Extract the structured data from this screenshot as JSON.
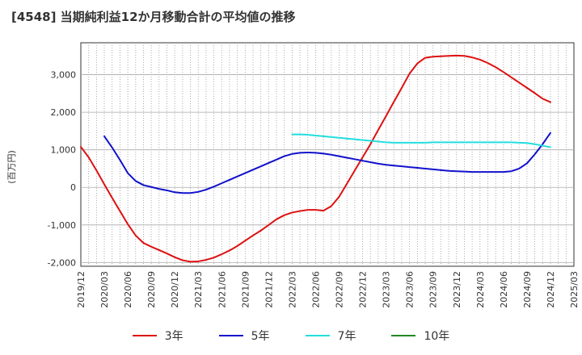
{
  "title": "[4548]  当期純利益12か月移動合計の平均値の推移",
  "chart_data": {
    "type": "line",
    "ylabel": "(百万円)",
    "ylim": [
      -2100,
      3850
    ],
    "yticks": [
      3000,
      2000,
      1000,
      0,
      -1000,
      -2000
    ],
    "ytick_labels": [
      "3,000",
      "2,000",
      "1,000",
      "0",
      "-1,000",
      "-2,000"
    ],
    "xlim": [
      "2019-12",
      "2025-03"
    ],
    "xticks": [
      "2019/12",
      "2020/03",
      "2020/06",
      "2020/09",
      "2020/12",
      "2021/03",
      "2021/06",
      "2021/09",
      "2021/12",
      "2022/03",
      "2022/06",
      "2022/09",
      "2022/12",
      "2023/03",
      "2023/06",
      "2023/09",
      "2023/12",
      "2024/03",
      "2024/06",
      "2024/09",
      "2024/12",
      "2025/03"
    ],
    "grid": true,
    "legend_position": "bottom",
    "series": [
      {
        "name": "3年",
        "color": "#dd1111",
        "x": [
          "2019-12",
          "2020-01",
          "2020-02",
          "2020-03",
          "2020-04",
          "2020-05",
          "2020-06",
          "2020-07",
          "2020-08",
          "2020-09",
          "2020-10",
          "2020-11",
          "2020-12",
          "2021-01",
          "2021-02",
          "2021-03",
          "2021-04",
          "2021-05",
          "2021-06",
          "2021-07",
          "2021-08",
          "2021-09",
          "2021-10",
          "2021-11",
          "2021-12",
          "2022-01",
          "2022-02",
          "2022-03",
          "2022-04",
          "2022-05",
          "2022-06",
          "2022-07",
          "2022-08",
          "2022-09",
          "2022-10",
          "2022-11",
          "2022-12",
          "2023-01",
          "2023-02",
          "2023-03",
          "2023-04",
          "2023-05",
          "2023-06",
          "2023-07",
          "2023-08",
          "2023-09",
          "2023-10",
          "2023-11",
          "2023-12",
          "2024-01",
          "2024-02",
          "2024-03",
          "2024-04",
          "2024-05",
          "2024-06",
          "2024-07",
          "2024-08",
          "2024-09",
          "2024-10",
          "2024-11",
          "2024-12"
        ],
        "values": [
          1080,
          800,
          450,
          80,
          -280,
          -630,
          -980,
          -1280,
          -1480,
          -1580,
          -1670,
          -1760,
          -1860,
          -1940,
          -1980,
          -1970,
          -1930,
          -1870,
          -1780,
          -1680,
          -1560,
          -1420,
          -1280,
          -1150,
          -1000,
          -850,
          -740,
          -670,
          -630,
          -600,
          -600,
          -620,
          -500,
          -250,
          100,
          450,
          800,
          1150,
          1530,
          1900,
          2280,
          2650,
          3030,
          3300,
          3450,
          3480,
          3490,
          3500,
          3510,
          3500,
          3460,
          3400,
          3310,
          3200,
          3070,
          2930,
          2790,
          2650,
          2510,
          2360,
          2270
        ]
      },
      {
        "name": "5年",
        "color": "#1111cc",
        "x": [
          "2020-03",
          "2020-04",
          "2020-05",
          "2020-06",
          "2020-07",
          "2020-08",
          "2020-09",
          "2020-10",
          "2020-11",
          "2020-12",
          "2021-01",
          "2021-02",
          "2021-03",
          "2021-04",
          "2021-05",
          "2021-06",
          "2021-07",
          "2021-08",
          "2021-09",
          "2021-10",
          "2021-11",
          "2021-12",
          "2022-01",
          "2022-02",
          "2022-03",
          "2022-04",
          "2022-05",
          "2022-06",
          "2022-07",
          "2022-08",
          "2022-09",
          "2022-10",
          "2022-11",
          "2022-12",
          "2023-01",
          "2023-02",
          "2023-03",
          "2023-04",
          "2023-05",
          "2023-06",
          "2023-07",
          "2023-08",
          "2023-09",
          "2023-10",
          "2023-11",
          "2023-12",
          "2024-01",
          "2024-02",
          "2024-03",
          "2024-04",
          "2024-05",
          "2024-06",
          "2024-07",
          "2024-08",
          "2024-09",
          "2024-10",
          "2024-11",
          "2024-12"
        ],
        "values": [
          1360,
          1060,
          730,
          380,
          170,
          60,
          10,
          -40,
          -80,
          -130,
          -150,
          -150,
          -120,
          -60,
          20,
          110,
          200,
          290,
          380,
          470,
          560,
          650,
          740,
          830,
          890,
          920,
          930,
          920,
          900,
          870,
          830,
          790,
          750,
          710,
          670,
          630,
          600,
          580,
          560,
          540,
          520,
          500,
          480,
          460,
          440,
          430,
          420,
          410,
          410,
          410,
          410,
          410,
          430,
          500,
          640,
          880,
          1150,
          1450
        ]
      },
      {
        "name": "7年",
        "color": "#22dddd",
        "x": [
          "2022-03",
          "2022-04",
          "2022-05",
          "2022-06",
          "2022-07",
          "2022-08",
          "2022-09",
          "2022-10",
          "2022-11",
          "2022-12",
          "2023-01",
          "2023-02",
          "2023-03",
          "2023-04",
          "2023-05",
          "2023-06",
          "2023-07",
          "2023-08",
          "2023-09",
          "2023-10",
          "2023-11",
          "2023-12",
          "2024-01",
          "2024-02",
          "2024-03",
          "2024-04",
          "2024-05",
          "2024-06",
          "2024-07",
          "2024-08",
          "2024-09",
          "2024-10",
          "2024-11",
          "2024-12"
        ],
        "values": [
          1410,
          1410,
          1400,
          1380,
          1360,
          1340,
          1320,
          1300,
          1280,
          1260,
          1240,
          1220,
          1200,
          1190,
          1190,
          1190,
          1190,
          1190,
          1200,
          1200,
          1200,
          1200,
          1200,
          1200,
          1200,
          1200,
          1200,
          1200,
          1200,
          1190,
          1180,
          1150,
          1110,
          1070
        ]
      },
      {
        "name": "10年",
        "color": "#228822",
        "x": [],
        "values": []
      }
    ]
  }
}
